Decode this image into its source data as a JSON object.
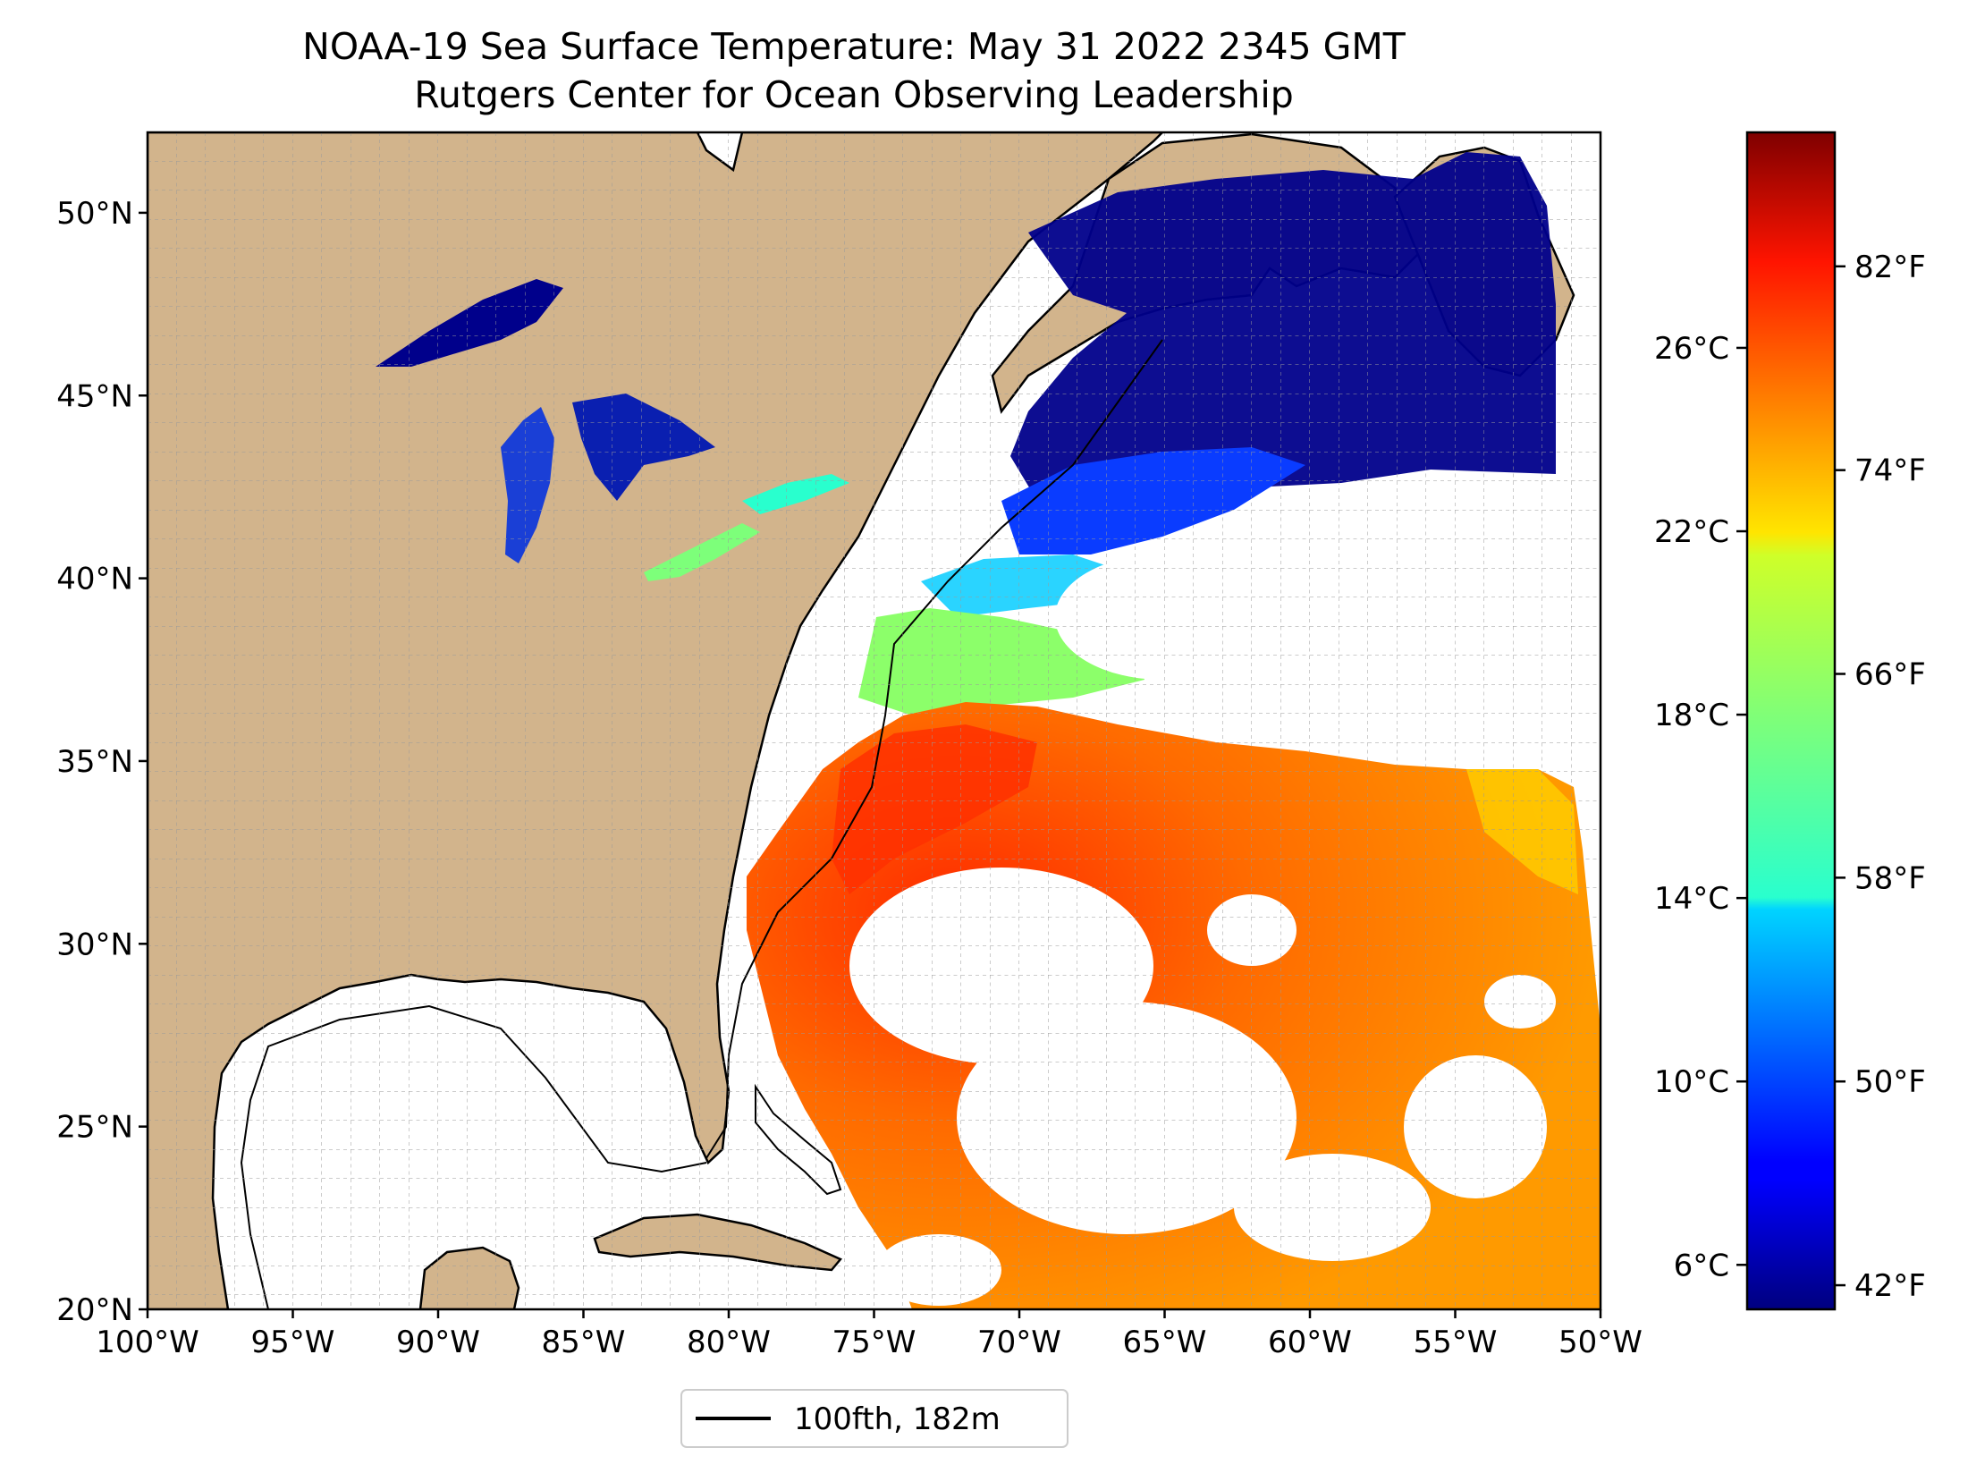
{
  "title": "NOAA-19 Sea Surface Temperature: May 31 2022 2345 GMT",
  "subtitle": "Rutgers Center for Ocean Observing Leadership",
  "map": {
    "lat_ticks": [
      "50°N",
      "45°N",
      "40°N",
      "35°N",
      "30°N",
      "25°N",
      "20°N"
    ],
    "lon_ticks": [
      "100°W",
      "95°W",
      "90°W",
      "85°W",
      "80°W",
      "75°W",
      "70°W",
      "65°W",
      "60°W",
      "55°W",
      "50°W"
    ],
    "lat_range": [
      20,
      52.2
    ],
    "lon_range": [
      -100,
      -50
    ],
    "grid": true,
    "land_color": "#d2b48c",
    "no_data_color": "#ffffff"
  },
  "legend": {
    "label": "100fth, 182m"
  },
  "colorbar": {
    "colormap": "jet",
    "celsius_ticks": [
      "26°C",
      "22°C",
      "18°C",
      "14°C",
      "10°C",
      "6°C"
    ],
    "fahrenheit_ticks": [
      "82°F",
      "74°F",
      "66°F",
      "58°F",
      "50°F",
      "42°F"
    ]
  }
}
